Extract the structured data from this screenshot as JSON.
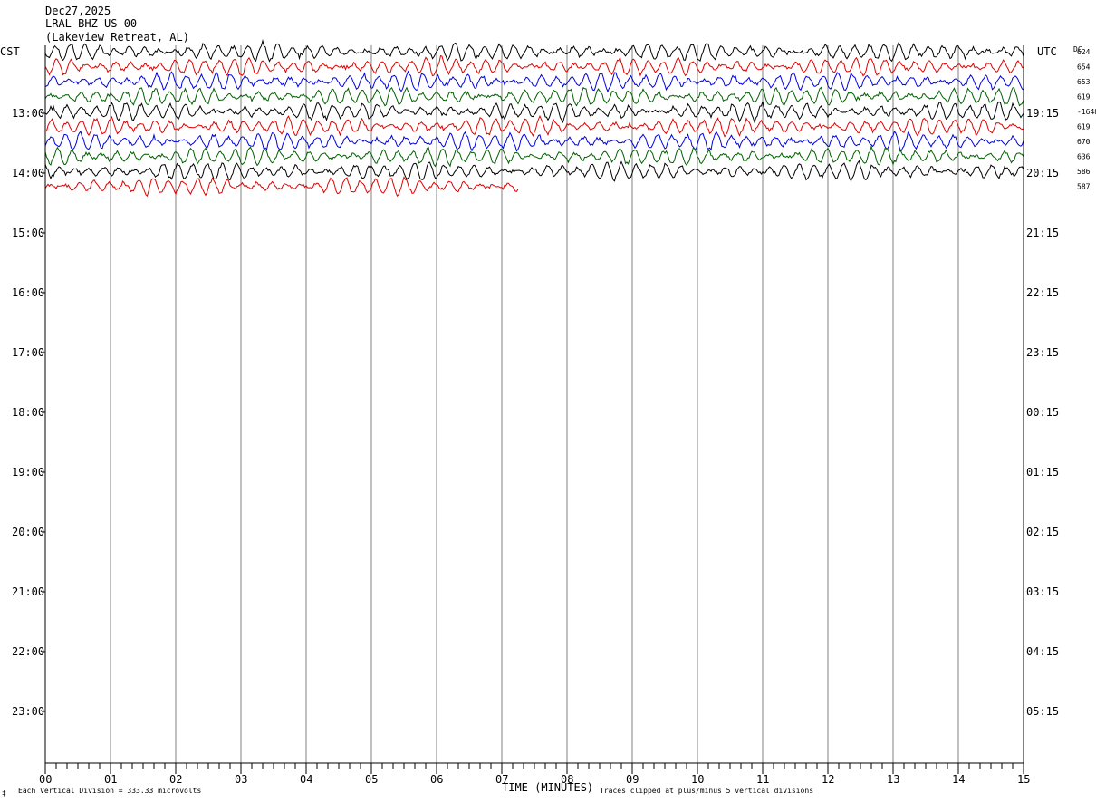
{
  "header": {
    "date": "Dec27,2025",
    "station": "LRAL BHZ US 00",
    "location": "(Lakeview Retreat, AL)"
  },
  "left_tz": "CST",
  "right_tz": "UTC",
  "dc_label": "DC",
  "footer": {
    "scale_note": "Each Vertical Division =  333.33 microvolts",
    "clip_note": "Traces clipped at plus/minus 5 vertical divisions",
    "corner_mark": "‡"
  },
  "colors": {
    "cycle": [
      "#000000",
      "#e00000",
      "#0000e0",
      "#006000"
    ],
    "grid": "#808080"
  },
  "chart_data": {
    "type": "line",
    "title": "LRAL BHZ US 00",
    "xlabel": "TIME (MINUTES)",
    "ylabel": "",
    "x_ticks": [
      "00",
      "01",
      "02",
      "03",
      "04",
      "05",
      "06",
      "07",
      "08",
      "09",
      "10",
      "11",
      "12",
      "13",
      "14",
      "15"
    ],
    "xlim": [
      0,
      15
    ],
    "left_hour_labels": [
      "13:00",
      "14:00",
      "15:00",
      "16:00",
      "17:00",
      "18:00",
      "19:00",
      "20:00",
      "21:00",
      "22:00",
      "23:00"
    ],
    "right_hour_labels": [
      "19:15",
      "20:15",
      "21:15",
      "22:15",
      "23:15",
      "00:15",
      "01:15",
      "02:15",
      "03:15",
      "04:15",
      "05:15"
    ],
    "traces_per_hour": 4,
    "minutes_per_trace": 15,
    "series": [
      {
        "index": 0,
        "color": "#000000",
        "dc": "624",
        "end_minute": 15
      },
      {
        "index": 1,
        "color": "#e00000",
        "dc": "654",
        "end_minute": 15
      },
      {
        "index": 2,
        "color": "#0000e0",
        "dc": "653",
        "end_minute": 15
      },
      {
        "index": 3,
        "color": "#006000",
        "dc": "619",
        "end_minute": 15
      },
      {
        "index": 4,
        "color": "#000000",
        "dc": "-1648",
        "end_minute": 15
      },
      {
        "index": 5,
        "color": "#e00000",
        "dc": "619",
        "end_minute": 15
      },
      {
        "index": 6,
        "color": "#0000e0",
        "dc": "670",
        "end_minute": 15
      },
      {
        "index": 7,
        "color": "#006000",
        "dc": "636",
        "end_minute": 15
      },
      {
        "index": 8,
        "color": "#000000",
        "dc": "586",
        "end_minute": 15
      },
      {
        "index": 9,
        "color": "#e00000",
        "dc": "587",
        "end_minute": 7.25
      }
    ],
    "clip_divisions": 5,
    "microvolts_per_division": 333.33
  }
}
